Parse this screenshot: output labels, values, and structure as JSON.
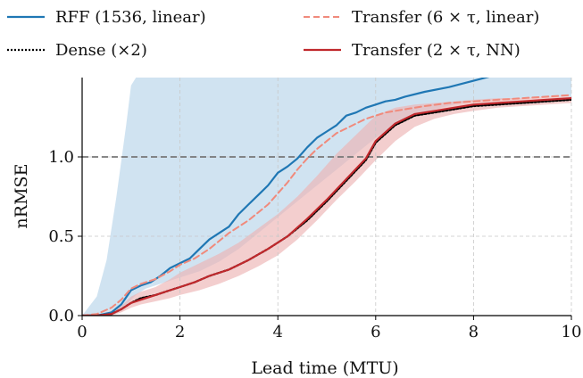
{
  "chart_data": {
    "type": "line",
    "title": "",
    "xlabel": "Lead time (MTU)",
    "ylabel": "nRMSE",
    "xlim": [
      0,
      10
    ],
    "ylim": [
      0,
      1.5
    ],
    "xticks": [
      0,
      2,
      4,
      6,
      8,
      10
    ],
    "yticks": [
      0.0,
      0.5,
      1.0
    ],
    "xtick_labels": [
      "0",
      "2",
      "4",
      "6",
      "8",
      "10"
    ],
    "ytick_labels": [
      "0.0",
      "0.5",
      "1.0"
    ],
    "grid": true,
    "legend_placement": "top, above plot, two columns",
    "reference_line": {
      "y": 1.0,
      "style": "dashed",
      "color": "#777777"
    },
    "series": [
      {
        "name": "RFF (1536, linear)",
        "color": "#1f77b4",
        "style": "solid",
        "x": [
          0,
          0.3,
          0.6,
          0.8,
          1.0,
          1.2,
          1.4,
          1.6,
          1.8,
          2.0,
          2.2,
          2.4,
          2.6,
          2.8,
          3.0,
          3.2,
          3.4,
          3.6,
          3.8,
          4.0,
          4.2,
          4.4,
          4.6,
          4.8,
          5.0,
          5.2,
          5.4,
          5.6,
          5.8,
          6.0,
          6.2,
          6.4,
          6.6,
          7.0,
          7.5,
          8.0,
          8.5,
          9.0,
          9.5,
          10.0
        ],
        "values": [
          0.0,
          0.0,
          0.02,
          0.07,
          0.16,
          0.19,
          0.21,
          0.25,
          0.3,
          0.33,
          0.36,
          0.42,
          0.48,
          0.52,
          0.56,
          0.64,
          0.7,
          0.76,
          0.82,
          0.9,
          0.94,
          0.99,
          1.06,
          1.12,
          1.16,
          1.2,
          1.26,
          1.28,
          1.31,
          1.33,
          1.35,
          1.36,
          1.38,
          1.41,
          1.44,
          1.48,
          1.52,
          1.56,
          1.6,
          1.65
        ]
      },
      {
        "name": "Dense (×2)",
        "color": "#000000",
        "style": "dotted",
        "x": [
          0,
          0.3,
          0.6,
          0.8,
          1.0,
          1.2,
          1.5,
          1.8,
          2.0,
          2.3,
          2.6,
          3.0,
          3.4,
          3.8,
          4.2,
          4.6,
          5.0,
          5.4,
          5.8,
          6.0,
          6.4,
          6.8,
          7.2,
          7.6,
          8.0,
          8.5,
          9.0,
          9.5,
          10.0
        ],
        "values": [
          0.0,
          0.0,
          0.01,
          0.04,
          0.08,
          0.11,
          0.13,
          0.16,
          0.18,
          0.21,
          0.25,
          0.29,
          0.35,
          0.42,
          0.5,
          0.6,
          0.72,
          0.85,
          0.98,
          1.09,
          1.2,
          1.26,
          1.28,
          1.3,
          1.32,
          1.33,
          1.34,
          1.35,
          1.36
        ]
      },
      {
        "name": "Transfer (6 × τ, linear)",
        "color": "#f08a7c",
        "style": "dashed",
        "x": [
          0,
          0.3,
          0.6,
          0.8,
          1.0,
          1.2,
          1.5,
          1.8,
          2.0,
          2.3,
          2.6,
          3.0,
          3.4,
          3.8,
          4.0,
          4.2,
          4.4,
          4.6,
          4.8,
          5.0,
          5.2,
          5.4,
          5.6,
          5.8,
          6.0,
          6.2,
          6.4,
          6.6,
          7.0,
          7.5,
          8.0,
          8.5,
          9.0,
          9.5,
          10.0
        ],
        "values": [
          0.0,
          0.01,
          0.05,
          0.1,
          0.17,
          0.2,
          0.23,
          0.28,
          0.32,
          0.36,
          0.42,
          0.52,
          0.6,
          0.7,
          0.77,
          0.84,
          0.92,
          0.99,
          1.05,
          1.1,
          1.15,
          1.18,
          1.21,
          1.24,
          1.26,
          1.28,
          1.29,
          1.3,
          1.32,
          1.34,
          1.35,
          1.36,
          1.37,
          1.38,
          1.39
        ]
      },
      {
        "name": "Transfer (2 × τ, NN)",
        "color": "#c0282c",
        "style": "solid",
        "x": [
          0,
          0.3,
          0.6,
          0.8,
          1.0,
          1.2,
          1.5,
          1.8,
          2.0,
          2.3,
          2.6,
          3.0,
          3.4,
          3.8,
          4.2,
          4.6,
          5.0,
          5.4,
          5.8,
          6.0,
          6.4,
          6.8,
          7.2,
          7.6,
          8.0,
          8.5,
          9.0,
          9.5,
          10.0
        ],
        "values": [
          0.0,
          0.0,
          0.01,
          0.04,
          0.08,
          0.1,
          0.13,
          0.16,
          0.18,
          0.21,
          0.25,
          0.29,
          0.35,
          0.42,
          0.5,
          0.61,
          0.73,
          0.86,
          0.99,
          1.1,
          1.21,
          1.27,
          1.29,
          1.31,
          1.33,
          1.34,
          1.35,
          1.36,
          1.37
        ]
      }
    ],
    "bands": [
      {
        "series": "RFF (1536, linear)",
        "color": "#b7d4ea",
        "x": [
          0,
          0.3,
          0.5,
          0.7,
          0.9,
          1.0,
          1.1,
          1.2,
          1.3,
          1.6,
          2.0,
          2.4,
          2.8,
          3.2,
          3.6,
          4.0,
          4.4,
          4.8,
          5.2,
          5.6,
          6.0,
          6.4,
          6.8,
          7.2,
          7.6,
          8.0,
          8.5,
          9.0,
          9.5,
          10.0
        ],
        "lower": [
          0.0,
          0.0,
          0.0,
          0.02,
          0.06,
          0.1,
          0.13,
          0.15,
          0.17,
          0.2,
          0.24,
          0.28,
          0.34,
          0.42,
          0.52,
          0.62,
          0.72,
          0.82,
          0.92,
          1.02,
          1.12,
          1.2,
          1.26,
          1.3,
          1.33,
          1.35,
          1.36,
          1.37,
          1.38,
          1.38
        ],
        "upper": [
          0.0,
          0.12,
          0.35,
          0.75,
          1.2,
          1.45,
          1.5,
          1.5,
          1.5,
          1.5,
          1.5,
          1.5,
          1.5,
          1.5,
          1.5,
          1.5,
          1.5,
          1.5,
          1.5,
          1.5,
          1.5,
          1.5,
          1.5,
          1.5,
          1.5,
          1.5,
          1.5,
          1.5,
          1.5,
          1.5
        ]
      },
      {
        "series": "Transfer (2 × τ, NN)",
        "color": "#ecb4b4",
        "x": [
          0,
          0.3,
          0.6,
          0.8,
          1.0,
          1.2,
          1.5,
          1.8,
          2.0,
          2.4,
          2.8,
          3.2,
          3.6,
          4.0,
          4.4,
          4.8,
          5.2,
          5.6,
          6.0,
          6.4,
          6.8,
          7.2,
          7.6,
          8.0,
          8.5,
          9.0,
          9.5,
          10.0
        ],
        "lower": [
          0.0,
          0.0,
          0.0,
          0.02,
          0.05,
          0.07,
          0.09,
          0.11,
          0.13,
          0.16,
          0.2,
          0.25,
          0.31,
          0.38,
          0.48,
          0.6,
          0.73,
          0.85,
          0.98,
          1.1,
          1.19,
          1.24,
          1.27,
          1.29,
          1.31,
          1.32,
          1.33,
          1.34
        ],
        "upper": [
          0.0,
          0.0,
          0.03,
          0.06,
          0.12,
          0.15,
          0.18,
          0.23,
          0.27,
          0.33,
          0.39,
          0.46,
          0.55,
          0.64,
          0.75,
          0.88,
          1.02,
          1.14,
          1.26,
          1.31,
          1.33,
          1.34,
          1.35,
          1.36,
          1.37,
          1.37,
          1.38,
          1.38
        ]
      }
    ]
  }
}
